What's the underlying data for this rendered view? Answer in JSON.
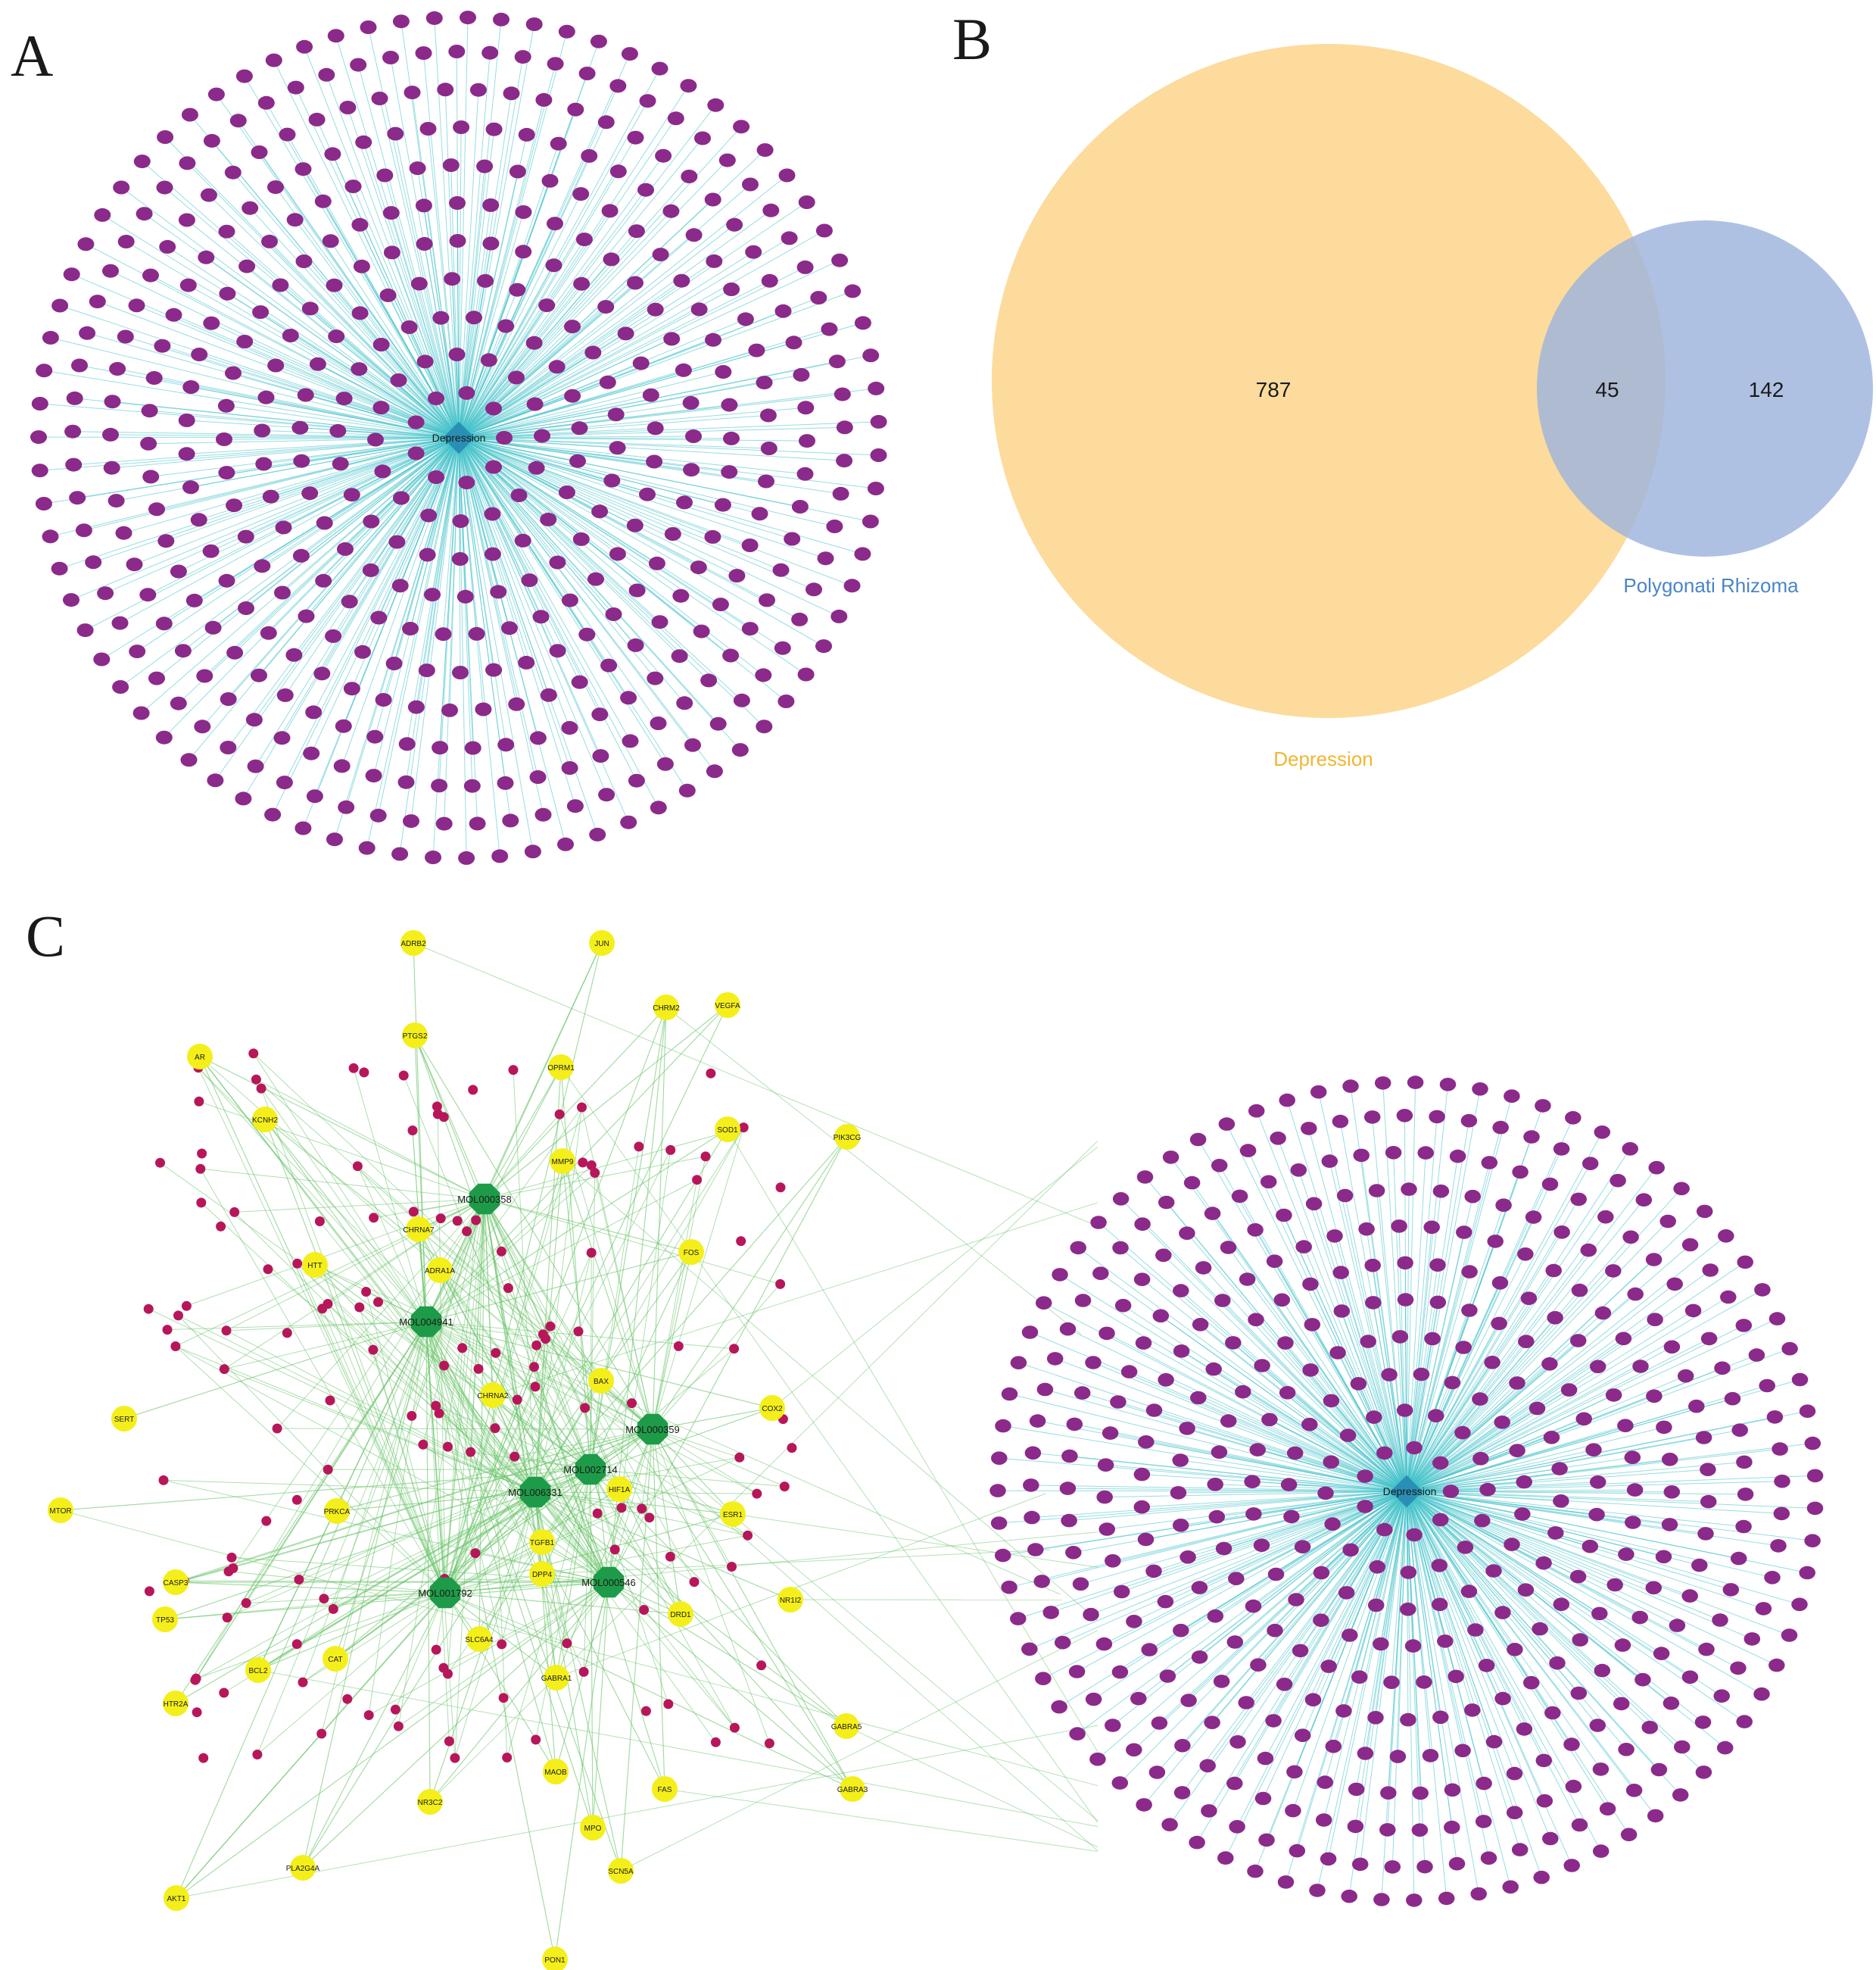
{
  "panels": {
    "a": {
      "letter": "A",
      "hub": "Depression",
      "colors": {
        "node": "#8b2a8b",
        "edge": "#3fc1c9",
        "hub": "#2a8fb5"
      }
    },
    "b": {
      "letter": "B",
      "sets": [
        {
          "name": "Depression",
          "only": "787",
          "color": "#fbd58b",
          "label_color": "#f2b630"
        },
        {
          "name": "Polygonati Rhizoma",
          "only": "142",
          "color": "#9db3dd",
          "label_color": "#4a85c7"
        }
      ],
      "intersection": "45"
    },
    "c": {
      "letter": "C",
      "hub": "Depression",
      "compounds": [
        "MOL000358",
        "MOL004941",
        "MOL000359",
        "MOL002714",
        "MOL006331",
        "MOL001792",
        "MOL000546"
      ],
      "targets": [
        "ADRB2",
        "JUN",
        "CHRM2",
        "VEGFA",
        "AR",
        "PTGS2",
        "OPRM1",
        "KCNH2",
        "SOD1",
        "PIK3CG",
        "MMP9",
        "CHRNA7",
        "HTT",
        "FOS",
        "ADRA1A",
        "BAX",
        "CHRNA2",
        "SERT",
        "COX2",
        "HIF1A",
        "MTOR",
        "PRKCA",
        "ESR1",
        "TGFB1",
        "DPP4",
        "CASP3",
        "NR1I2",
        "DRD1",
        "TP53",
        "SLC6A4",
        "BCL2",
        "CAT",
        "GABRA1",
        "HTR2A",
        "GABRA5",
        "MAOB",
        "FAS",
        "GABRA3",
        "NR3C2",
        "MPO",
        "SCN5A",
        "PLA2G4A",
        "AKT1",
        "PON1"
      ],
      "colors": {
        "compound": "#1e9b48",
        "target": "#f4ef1a",
        "ingredient": "#b8165a",
        "edge": "#6bc46b",
        "node": "#8b2a8b",
        "hub_edge": "#3fc1c9",
        "hub": "#2a8fb5"
      }
    }
  }
}
